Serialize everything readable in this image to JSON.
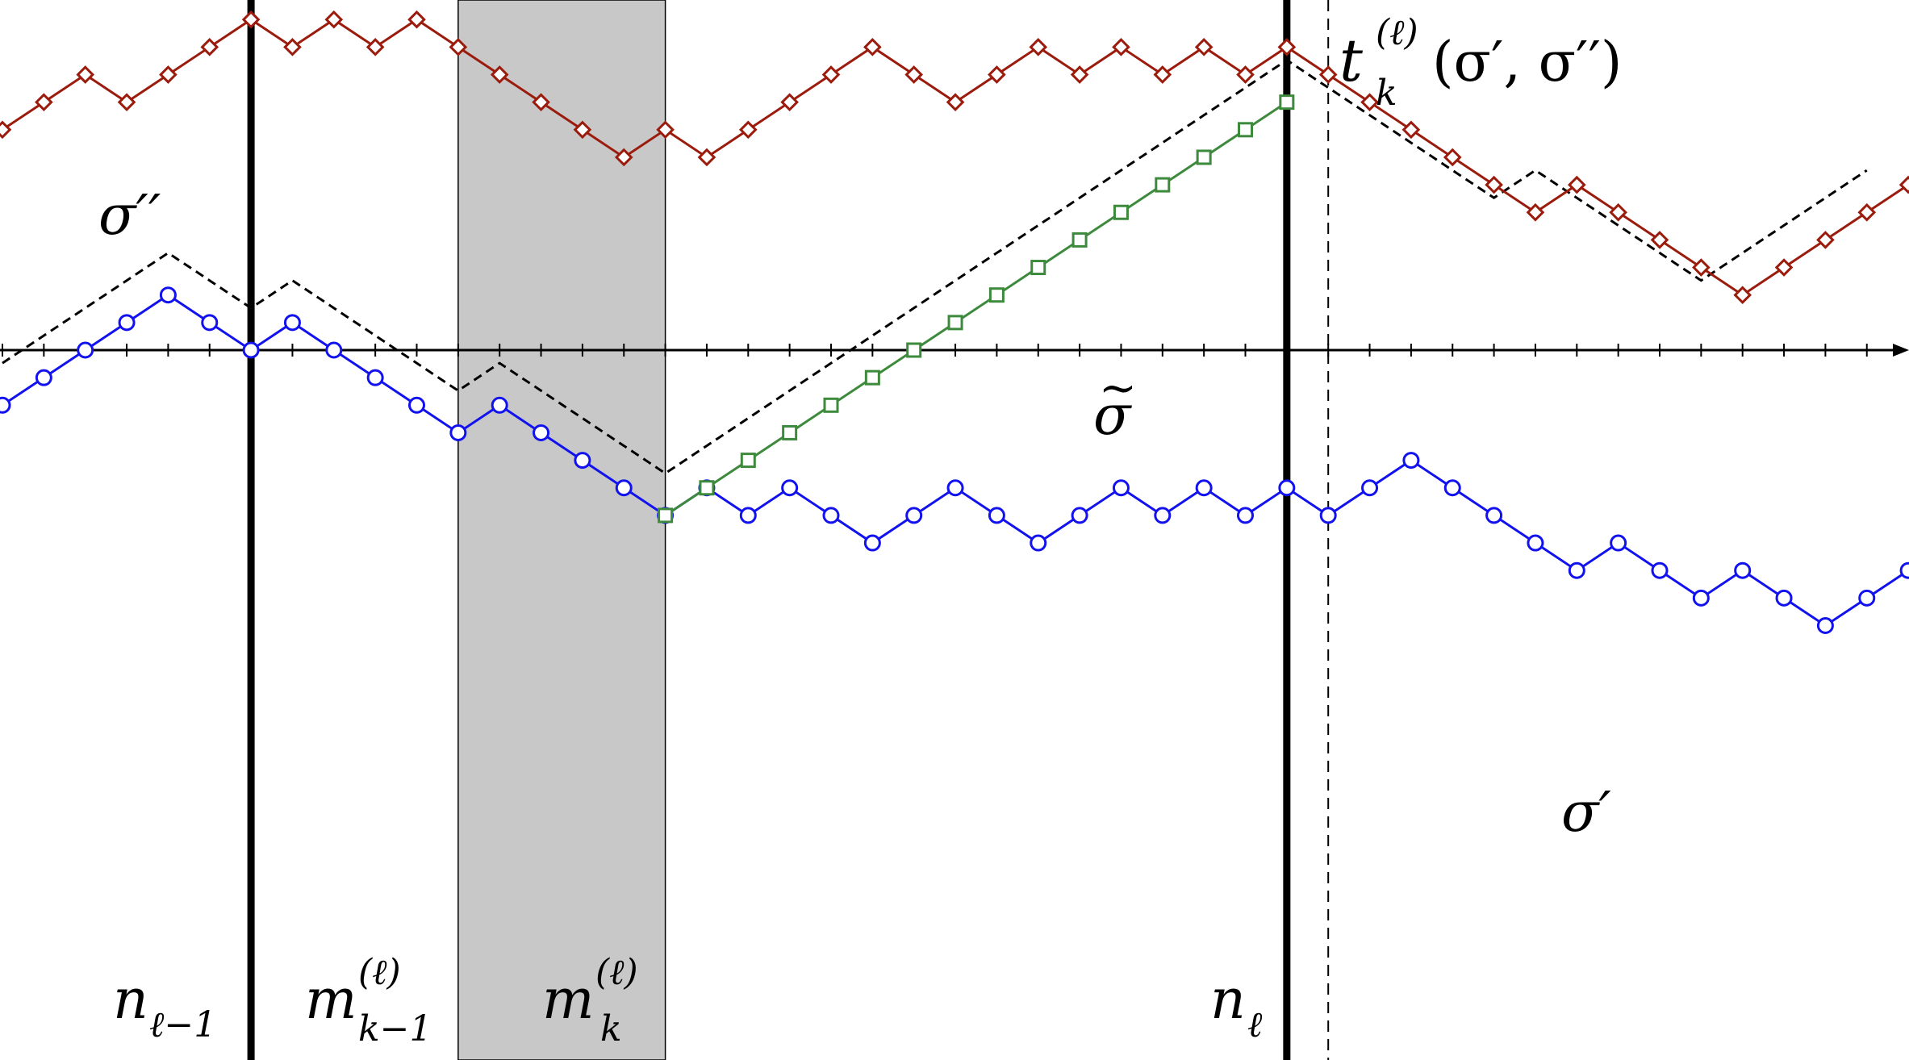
{
  "colors": {
    "sigma_double_prime": "#9b1b0c",
    "sigma_prime": "#1212ee",
    "sigma_tilde": "#3d8a3d",
    "shade": "#c8c8c8",
    "axis": "#000000",
    "dashed_path": "#000000"
  },
  "markers": {
    "sigma_double_prime": "diamond",
    "sigma_prime": "circle",
    "sigma_tilde": "square"
  },
  "paths": {
    "sigma_double_prime": {
      "start_level": 8,
      "steps": "UUDUUUDUDUDDDDDUDUUUUDDUUDUDUDUDDDDDDUDDDDUUUU"
    },
    "sigma_prime": {
      "start_level": -2,
      "steps": "UUUUDDUDDDDUDDDDUDUDDUUDDUUDUDUDUUDDDDUDDUDDUU"
    },
    "sigma_tilde": {
      "start_x": 16,
      "start_level": -6,
      "steps": "UUUUUUUUUUUUUUU"
    },
    "dashed_envelope": {
      "start_level": -1,
      "steps": "UUUUDDUDDDDUDDDDUUUUUUUUUUUUUUUDDDDDUDDDDUUUU"
    }
  },
  "vertical_lines": {
    "n_l_minus_1": 6,
    "m_k_minus_1": 11,
    "m_k": 16,
    "n_l": 31,
    "t_k": 32
  },
  "axis": {
    "min_x": 0,
    "max_x": 46
  },
  "labels": {
    "sigma_double_prime": "σ′′",
    "sigma_prime": "σ′",
    "sigma_tilde_tilde": "~",
    "sigma_tilde_base": "σ",
    "t_base": "t",
    "t_sub": "k",
    "t_sup": "(ℓ)",
    "t_args": "(σ′, σ′′)",
    "n_l_minus_1_base": "n",
    "n_l_minus_1_sub": "ℓ−1",
    "m_k_minus_1_base": "m",
    "m_k_minus_1_sub": "k−1",
    "m_k_minus_1_sup": "(ℓ)",
    "m_k_base": "m",
    "m_k_sub": "k",
    "m_k_sup": "(ℓ)",
    "n_l_base": "n",
    "n_l_sub": "ℓ"
  }
}
